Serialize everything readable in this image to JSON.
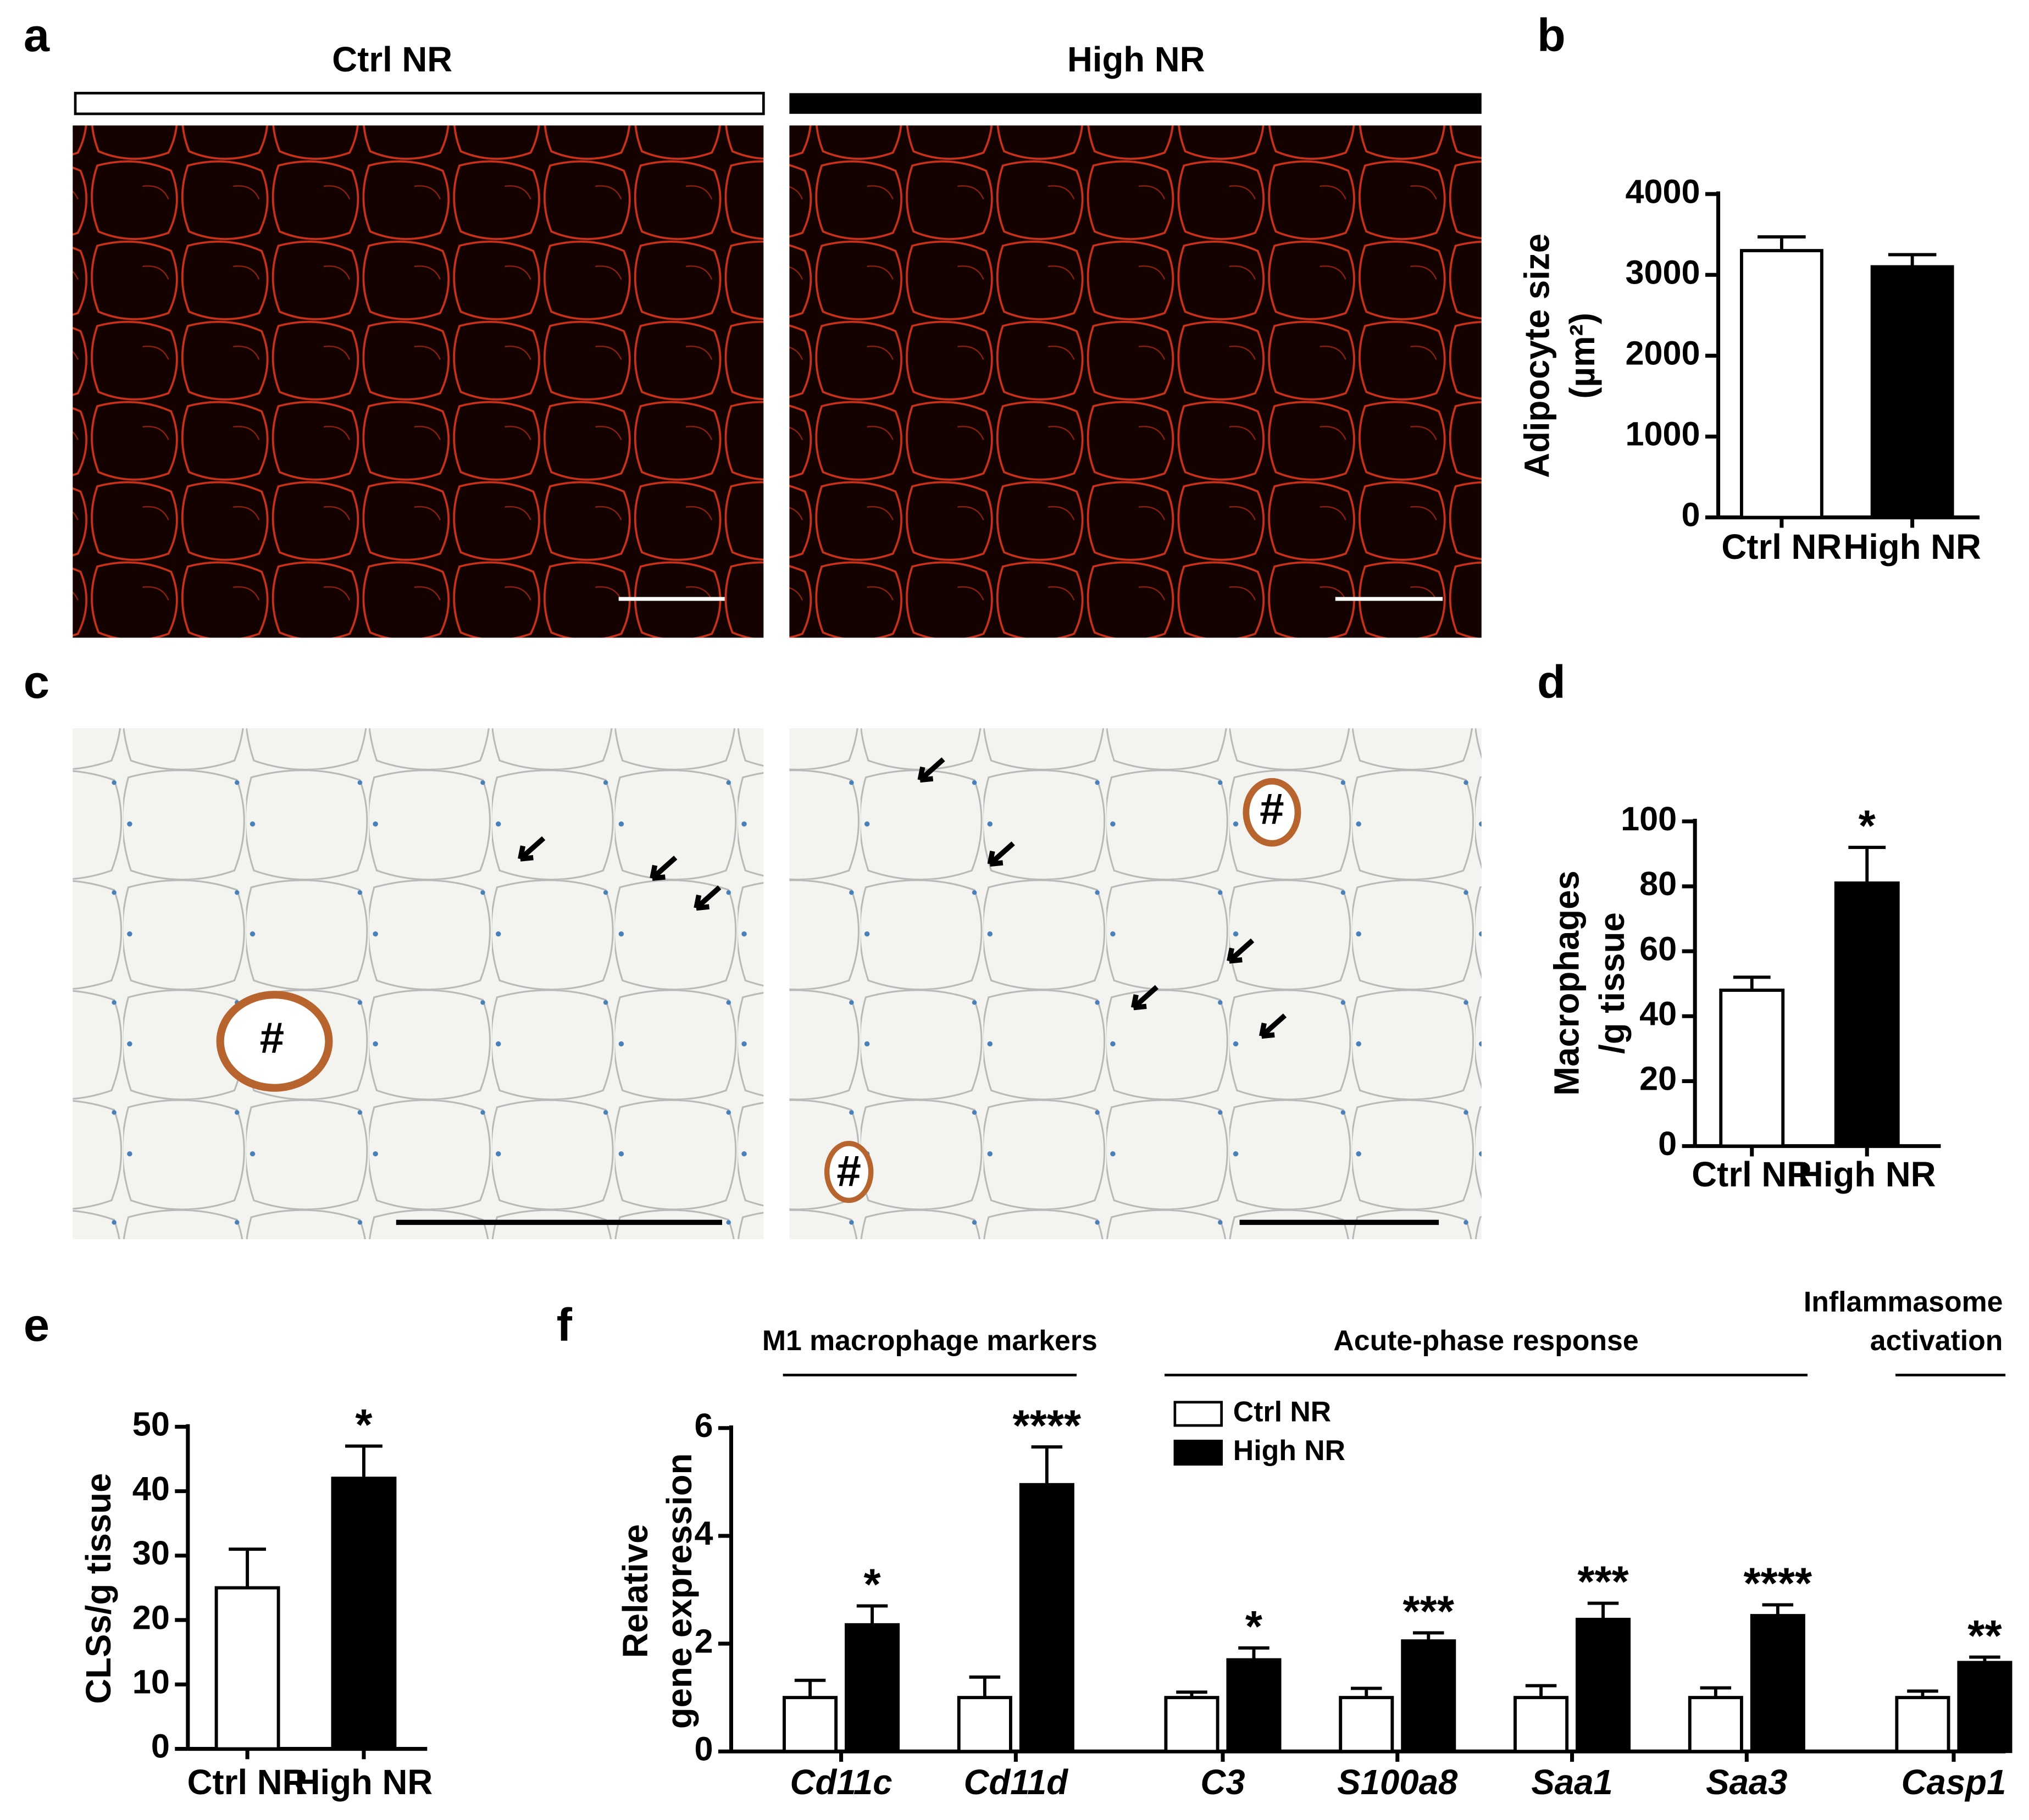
{
  "panel_labels": [
    "a",
    "b",
    "c",
    "d",
    "e",
    "f"
  ],
  "micrographs": {
    "columns": [
      "Ctrl NR",
      "High NR"
    ],
    "marks": [
      "#",
      "#",
      "#"
    ]
  },
  "chart_data": [
    {
      "type": "bar",
      "categories": [
        "Ctrl NR",
        "High NR"
      ],
      "values": [
        3300,
        3100
      ],
      "errors": [
        170,
        150
      ],
      "colors": [
        "#ffffff",
        "#000000"
      ],
      "y_label": [
        "Adipocyte size",
        "(µm²)"
      ],
      "ylim": [
        0,
        4000
      ],
      "yticks": [
        0,
        1000,
        2000,
        3000,
        4000
      ]
    },
    {
      "type": "bar",
      "categories": [
        "Ctrl NR",
        "High NR"
      ],
      "values": [
        48,
        81
      ],
      "errors": [
        4,
        11
      ],
      "colors": [
        "#ffffff",
        "#000000"
      ],
      "y_label": [
        "Macrophages",
        "/g tissue"
      ],
      "significance": [
        null,
        "*"
      ],
      "ylim": [
        0,
        100
      ],
      "yticks": [
        0,
        20,
        40,
        60,
        80,
        100
      ]
    },
    {
      "type": "bar",
      "categories": [
        "Ctrl NR",
        "High NR"
      ],
      "values": [
        25,
        42
      ],
      "errors": [
        6,
        5
      ],
      "colors": [
        "#ffffff",
        "#000000"
      ],
      "y_label": [
        "CLSs/g tissue"
      ],
      "significance": [
        null,
        "*"
      ],
      "ylim": [
        0,
        50
      ],
      "yticks": [
        0,
        10,
        20,
        30,
        40,
        50
      ]
    },
    {
      "type": "grouped_bar",
      "groups": [
        {
          "label": [
            "M1 macrophage markers"
          ],
          "categories": [
            "Cd11c",
            "Cd11d"
          ]
        },
        {
          "label": [
            "Acute-phase response"
          ],
          "categories": [
            "C3",
            "S100a8",
            "Saa1",
            "Saa3"
          ]
        },
        {
          "label": [
            "Inflammasome",
            "activation"
          ],
          "categories": [
            "Casp1"
          ]
        }
      ],
      "series": [
        {
          "name": "Ctrl NR",
          "color": "#ffffff",
          "values": [
            1,
            1,
            1,
            1,
            1,
            1,
            1
          ],
          "errors": [
            0.32,
            0.38,
            0.1,
            0.17,
            0.22,
            0.18,
            0.12
          ]
        },
        {
          "name": "High NR",
          "color": "#000000",
          "values": [
            2.35,
            4.95,
            1.7,
            2.05,
            2.45,
            2.52,
            1.65
          ],
          "errors": [
            0.35,
            0.7,
            0.22,
            0.15,
            0.3,
            0.2,
            0.1
          ]
        }
      ],
      "significance": [
        "*",
        "****",
        "*",
        "***",
        "***",
        "****",
        "**"
      ],
      "y_label": [
        "Relative",
        "gene expression"
      ],
      "ylim": [
        0,
        6
      ],
      "yticks": [
        0,
        2,
        4,
        6
      ]
    }
  ]
}
